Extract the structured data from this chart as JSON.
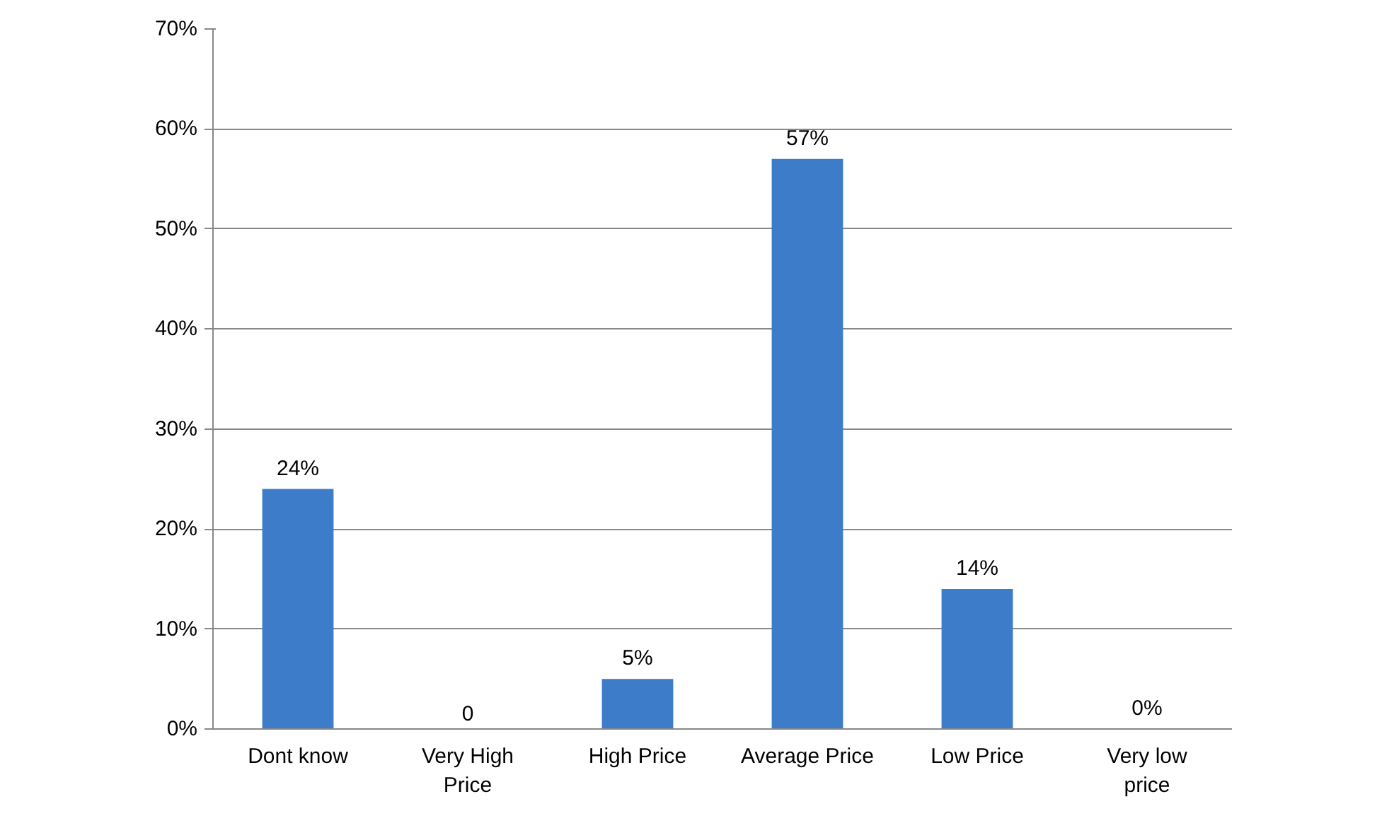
{
  "chart_data": {
    "type": "bar",
    "categories": [
      "Dont know",
      "Very High\nPrice",
      "High Price",
      "Average Price",
      "Low Price",
      "Very low\nprice"
    ],
    "values": [
      24,
      0,
      5,
      57,
      14,
      0
    ],
    "value_labels": [
      "24%",
      "0",
      "5%",
      "57%",
      "14%",
      "0%"
    ],
    "color": "#3d7cc9",
    "ylim": [
      0,
      70
    ],
    "yticks": [
      {
        "value": 0,
        "label": "0%"
      },
      {
        "value": 10,
        "label": "10%"
      },
      {
        "value": 20,
        "label": "20%"
      },
      {
        "value": 30,
        "label": "30%"
      },
      {
        "value": 40,
        "label": "40%"
      },
      {
        "value": 50,
        "label": "50%"
      },
      {
        "value": 60,
        "label": "60%"
      },
      {
        "value": 70,
        "label": "70%"
      }
    ],
    "grid": "y"
  }
}
